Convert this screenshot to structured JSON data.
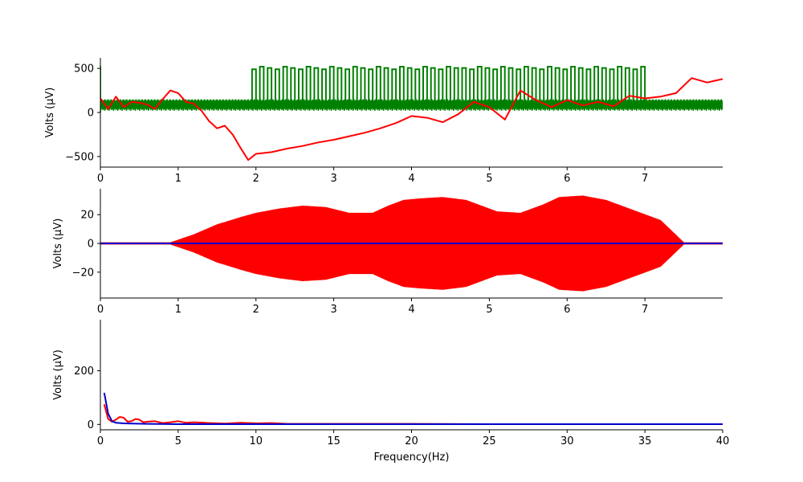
{
  "chart_data": [
    {
      "type": "line",
      "title": "",
      "xlabel": "",
      "ylabel": "Volts (μV)",
      "xlim": [
        0,
        8
      ],
      "ylim": [
        -620,
        620
      ],
      "xticks": [
        0,
        1,
        2,
        3,
        4,
        5,
        6,
        7
      ],
      "yticks": [
        -500,
        0,
        500
      ],
      "grid": false,
      "series": [
        {
          "color": "#008000",
          "description": "square-wave bursts: ~20-150 band outside 1.95-7.0 s, ~20-520 inside",
          "x": [
            0,
            1.95,
            1.95,
            7.0,
            7.0,
            8
          ],
          "y": [
            80,
            80,
            280,
            280,
            80,
            80
          ]
        },
        {
          "color": "#ff0000",
          "x": [
            0,
            0.1,
            0.2,
            0.3,
            0.4,
            0.5,
            0.6,
            0.7,
            0.8,
            0.9,
            1.0,
            1.1,
            1.2,
            1.3,
            1.4,
            1.5,
            1.6,
            1.7,
            1.8,
            1.9,
            2.0,
            2.2,
            2.4,
            2.6,
            2.8,
            3.0,
            3.2,
            3.4,
            3.6,
            3.8,
            4.0,
            4.2,
            4.4,
            4.6,
            4.8,
            5.0,
            5.2,
            5.4,
            5.6,
            5.8,
            6.0,
            6.2,
            6.4,
            6.6,
            6.8,
            7.0,
            7.2,
            7.4,
            7.6,
            7.8,
            8.0
          ],
          "y": [
            160,
            40,
            180,
            60,
            120,
            110,
            90,
            40,
            150,
            250,
            220,
            120,
            100,
            20,
            -100,
            -180,
            -150,
            -250,
            -400,
            -540,
            -470,
            -450,
            -410,
            -380,
            -340,
            -310,
            -270,
            -230,
            -180,
            -120,
            -40,
            -60,
            -110,
            -20,
            120,
            60,
            -80,
            250,
            140,
            60,
            140,
            80,
            120,
            70,
            190,
            160,
            180,
            220,
            390,
            340,
            380
          ]
        }
      ]
    },
    {
      "type": "area",
      "title": "",
      "xlabel": "",
      "ylabel": "Volts (μV)",
      "xlim": [
        0,
        8
      ],
      "ylim": [
        -38,
        38
      ],
      "xticks": [
        0,
        1,
        2,
        3,
        4,
        5,
        6,
        7
      ],
      "yticks": [
        -20,
        0,
        20
      ],
      "grid": false,
      "series": [
        {
          "color": "#ff0000",
          "description": "symmetric oscillation envelope (±amplitude)",
          "x": [
            0,
            0.9,
            1.2,
            1.5,
            1.8,
            2.0,
            2.3,
            2.6,
            2.9,
            3.2,
            3.5,
            3.7,
            3.9,
            4.1,
            4.4,
            4.7,
            4.9,
            5.1,
            5.4,
            5.7,
            5.9,
            6.2,
            6.5,
            6.8,
            7.0,
            7.2,
            7.5,
            8
          ],
          "y": [
            0.5,
            0.5,
            6,
            13,
            18,
            21,
            24,
            26,
            25,
            21,
            21,
            26,
            30,
            31,
            32,
            30,
            26,
            22,
            21,
            27,
            32,
            33,
            30,
            24,
            20,
            16,
            0.5,
            0.5
          ]
        },
        {
          "color": "#0000cc",
          "x": [
            0,
            8
          ],
          "y": [
            0,
            0
          ]
        }
      ]
    },
    {
      "type": "line",
      "title": "",
      "xlabel": "Frequency(Hz)",
      "ylabel": "Volts (μV)",
      "xlim": [
        0,
        40
      ],
      "ylim": [
        -20,
        390
      ],
      "xticks": [
        0,
        5,
        10,
        15,
        20,
        25,
        30,
        35,
        40
      ],
      "yticks": [
        0,
        200
      ],
      "grid": false,
      "series": [
        {
          "color": "#ff0000",
          "x": [
            0.25,
            0.5,
            0.75,
            1.0,
            1.25,
            1.5,
            1.75,
            2.0,
            2.25,
            2.5,
            2.75,
            3.0,
            3.5,
            4.0,
            4.5,
            5.0,
            5.5,
            6.0,
            7.0,
            8.0,
            9.0,
            10.0,
            11.0,
            12.0,
            15.0,
            20.0,
            25.0,
            30.0,
            35.0,
            40.0
          ],
          "y": [
            75,
            20,
            10,
            18,
            28,
            25,
            10,
            12,
            20,
            18,
            8,
            10,
            12,
            5,
            8,
            12,
            6,
            8,
            5,
            3,
            6,
            4,
            5,
            2,
            2,
            2,
            1,
            1,
            1,
            1
          ]
        },
        {
          "color": "#0000cc",
          "x": [
            0.25,
            0.5,
            0.75,
            1.0,
            1.5,
            2.0,
            3.0,
            5.0,
            10.0,
            20.0,
            30.0,
            40.0
          ],
          "y": [
            118,
            40,
            12,
            6,
            4,
            3,
            2,
            1,
            1,
            1,
            1,
            1
          ]
        }
      ]
    }
  ]
}
